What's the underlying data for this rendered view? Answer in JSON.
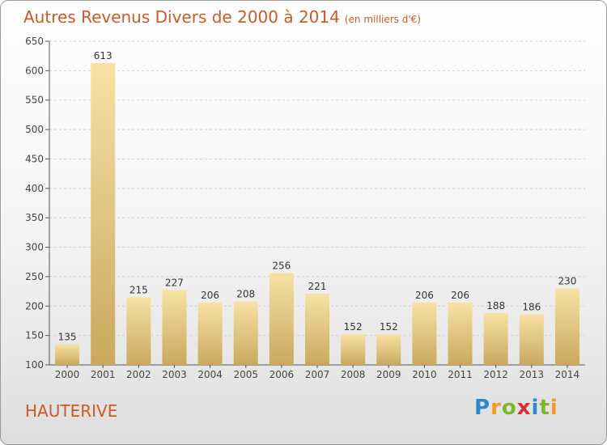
{
  "header": {
    "title": "Autres Revenus Divers de 2000 à 2014",
    "unit": "(en milliers d'€)"
  },
  "footer": {
    "commune": "HAUTERIVE",
    "logo_letters": [
      "P",
      "r",
      "o",
      "x",
      "i",
      "t",
      "i"
    ],
    "logo_colors": [
      "#2a8ad0",
      "#f39a1f",
      "#7cb72e",
      "#d9302f",
      "#2a8ad0",
      "#7cb72e",
      "#f39a1f"
    ]
  },
  "colors": {
    "title": "#cc5a28",
    "bar_light": "#f7e2a4",
    "bar_dark": "#caa85e",
    "axis": "#555555",
    "grid": "#cfcfcf"
  },
  "chart_data": {
    "type": "bar",
    "title": "Autres Revenus Divers de 2000 à 2014",
    "categories": [
      "2000",
      "2001",
      "2002",
      "2003",
      "2004",
      "2005",
      "2006",
      "2007",
      "2008",
      "2009",
      "2010",
      "2011",
      "2012",
      "2013",
      "2014"
    ],
    "values": [
      135,
      613,
      215,
      227,
      206,
      208,
      256,
      221,
      152,
      152,
      206,
      206,
      188,
      186,
      230
    ],
    "ylim": [
      100,
      650
    ],
    "yticks": [
      100,
      150,
      200,
      250,
      300,
      350,
      400,
      450,
      500,
      550,
      600,
      650
    ],
    "grid": "horizontal dashed",
    "data_labels": true
  }
}
